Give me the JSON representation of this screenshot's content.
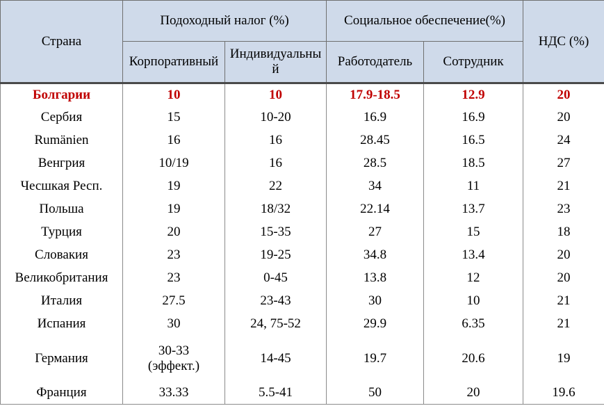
{
  "header": {
    "country": "Страна",
    "income_tax": "Подоходный налог (%)",
    "social": "Социальное обеспечение(%)",
    "vat": "НДС (%)",
    "corporate": "Корпоративный",
    "individual": "Индивидуальный",
    "employer": "Работодатель",
    "employee": "Сотрудник"
  },
  "rows": [
    {
      "country": "Болгарии",
      "corporate": "10",
      "individual": "10",
      "employer": "17.9-18.5",
      "employee": "12.9",
      "vat": "20"
    },
    {
      "country": "Сербия",
      "corporate": "15",
      "individual": "10-20",
      "employer": "16.9",
      "employee": "16.9",
      "vat": "20"
    },
    {
      "country": "Rumänien",
      "corporate": "16",
      "individual": "16",
      "employer": "28.45",
      "employee": "16.5",
      "vat": "24"
    },
    {
      "country": "Венгрия",
      "corporate": "10/19",
      "individual": "16",
      "employer": "28.5",
      "employee": "18.5",
      "vat": "27"
    },
    {
      "country": "Чесшкая Респ.",
      "corporate": "19",
      "individual": "22",
      "employer": "34",
      "employee": "11",
      "vat": "21"
    },
    {
      "country": "Польша",
      "corporate": "19",
      "individual": "18/32",
      "employer": "22.14",
      "employee": "13.7",
      "vat": "23"
    },
    {
      "country": "Турция",
      "corporate": "20",
      "individual": "15-35",
      "employer": "27",
      "employee": "15",
      "vat": "18"
    },
    {
      "country": "Словакия",
      "corporate": "23",
      "individual": "19-25",
      "employer": "34.8",
      "employee": "13.4",
      "vat": "20"
    },
    {
      "country": "Великобритания",
      "corporate": "23",
      "individual": "0-45",
      "employer": "13.8",
      "employee": "12",
      "vat": "20"
    },
    {
      "country": "Италия",
      "corporate": "27.5",
      "individual": "23-43",
      "employer": "30",
      "employee": "10",
      "vat": "21"
    },
    {
      "country": "Испания",
      "corporate": "30",
      "individual": "24, 75-52",
      "employer": "29.9",
      "employee": "6.35",
      "vat": "21"
    },
    {
      "country": "Германия",
      "corporate": "30-33 (эффект.)",
      "individual": "14-45",
      "employer": "19.7",
      "employee": "20.6",
      "vat": "19"
    },
    {
      "country": "Франция",
      "corporate": "33.33",
      "individual": "5.5-41",
      "employer": "50",
      "employee": "20",
      "vat": "19.6"
    }
  ],
  "highlight_color": "#c00000",
  "header_bg": "#cfdaea"
}
